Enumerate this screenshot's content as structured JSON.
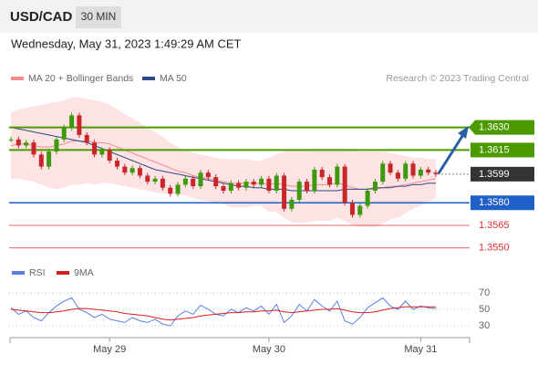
{
  "chart_data": {
    "type": "candlestick",
    "title": "USD/CAD",
    "timeframe": "30 MIN",
    "subtitle": "Wednesday, May 31, 2023 1:49:29 AM CET",
    "credit": "Research © 2023 Trading Central",
    "ylim": [
      1.3542,
      1.3654
    ],
    "up_color": "#3d9a0e",
    "down_color": "#c8262a",
    "categories": [
      null,
      null,
      null,
      null,
      null,
      null,
      null,
      null,
      null,
      null,
      null,
      null,
      null,
      "May 29",
      null,
      null,
      null,
      null,
      null,
      null,
      null,
      null,
      null,
      null,
      null,
      null,
      null,
      null,
      null,
      null,
      null,
      null,
      null,
      null,
      "May 30",
      null,
      null,
      null,
      null,
      null,
      null,
      null,
      null,
      null,
      null,
      null,
      null,
      null,
      null,
      null,
      null,
      null,
      null,
      null,
      "May 31",
      null,
      null
    ],
    "close": [
      1.3622,
      1.3618,
      1.362,
      1.3612,
      1.3604,
      1.3614,
      1.3622,
      1.363,
      1.3638,
      1.3625,
      1.362,
      1.3612,
      1.3615,
      1.3608,
      1.3604,
      1.36,
      1.3603,
      1.3598,
      1.3594,
      1.3596,
      1.359,
      1.3586,
      1.3592,
      1.3596,
      1.3591,
      1.36,
      1.3597,
      1.3591,
      1.3588,
      1.3593,
      1.359,
      1.3594,
      1.3592,
      1.3596,
      1.3588,
      1.3598,
      1.3576,
      1.3582,
      1.3594,
      1.3588,
      1.3602,
      1.3597,
      1.3592,
      1.3604,
      1.358,
      1.3572,
      1.3578,
      1.3588,
      1.3594,
      1.3606,
      1.36,
      1.3596,
      1.3606,
      1.3598,
      1.3602,
      1.36,
      1.3599
    ],
    "overlays": [
      {
        "name": "MA 20 + Bollinger Bands",
        "color": "#f08c8c",
        "band_color": "#fde3e3",
        "values": [
          1.3618,
          1.3619,
          1.3619,
          1.3618,
          1.3617,
          1.3617,
          1.3618,
          1.3619,
          1.3621,
          1.3621,
          1.3621,
          1.362,
          1.362,
          1.3619,
          1.3617,
          1.3615,
          1.3613,
          1.3611,
          1.3609,
          1.3607,
          1.3605,
          1.3603,
          1.3601,
          1.36,
          1.3598,
          1.3597,
          1.3596,
          1.3595,
          1.3594,
          1.3593,
          1.3593,
          1.3593,
          1.3593,
          1.3593,
          1.3592,
          1.3593,
          1.3592,
          1.3591,
          1.3591,
          1.3591,
          1.3592,
          1.3592,
          1.3592,
          1.3593,
          1.3592,
          1.359,
          1.3589,
          1.3589,
          1.3589,
          1.359,
          1.3591,
          1.3591,
          1.3592,
          1.3593,
          1.3594,
          1.3595,
          1.3596
        ],
        "upper": [
          1.364,
          1.3642,
          1.3643,
          1.3644,
          1.3645,
          1.3646,
          1.3647,
          1.3648,
          1.365,
          1.365,
          1.3649,
          1.3648,
          1.3647,
          1.3645,
          1.3642,
          1.3639,
          1.3636,
          1.3633,
          1.363,
          1.3627,
          1.3624,
          1.362,
          1.3617,
          1.3615,
          1.3613,
          1.3612,
          1.3611,
          1.361,
          1.3609,
          1.3609,
          1.3609,
          1.3609,
          1.3608,
          1.3608,
          1.361,
          1.3612,
          1.3614,
          1.3615,
          1.3615,
          1.3615,
          1.3616,
          1.3616,
          1.3616,
          1.3616,
          1.3616,
          1.3615,
          1.3614,
          1.3614,
          1.3614,
          1.3614,
          1.3613,
          1.3612,
          1.3611,
          1.361,
          1.361,
          1.3609,
          1.3609
        ],
        "lower": [
          1.3596,
          1.3596,
          1.3595,
          1.3594,
          1.3592,
          1.359,
          1.3589,
          1.359,
          1.3592,
          1.3592,
          1.3593,
          1.3592,
          1.3593,
          1.3593,
          1.3592,
          1.3591,
          1.359,
          1.3589,
          1.3588,
          1.3587,
          1.3586,
          1.3586,
          1.3585,
          1.3585,
          1.3583,
          1.3582,
          1.3581,
          1.358,
          1.3579,
          1.3577,
          1.3577,
          1.3577,
          1.3578,
          1.3578,
          1.3574,
          1.3574,
          1.357,
          1.3567,
          1.3567,
          1.3567,
          1.3568,
          1.3568,
          1.3568,
          1.357,
          1.3568,
          1.3565,
          1.3564,
          1.3564,
          1.3564,
          1.3566,
          1.3569,
          1.357,
          1.3573,
          1.3576,
          1.3578,
          1.3581,
          1.3583
        ]
      },
      {
        "name": "MA 50",
        "color": "#2c4a8a",
        "values": [
          1.363,
          1.3629,
          1.3628,
          1.3627,
          1.3626,
          1.3625,
          1.3624,
          1.3623,
          1.3622,
          1.3621,
          1.362,
          1.3618,
          1.3616,
          1.3614,
          1.3612,
          1.361,
          1.3608,
          1.3606,
          1.3604,
          1.3602,
          1.3601,
          1.36,
          1.3599,
          1.3598,
          1.3597,
          1.3596,
          1.3595,
          1.3594,
          1.3593,
          1.3592,
          1.3591,
          1.3591,
          1.359,
          1.359,
          1.3589,
          1.3589,
          1.3589,
          1.3588,
          1.3588,
          1.3588,
          1.3588,
          1.3588,
          1.3588,
          1.3588,
          1.3589,
          1.3589,
          1.3589,
          1.3589,
          1.359,
          1.359,
          1.359,
          1.3591,
          1.3591,
          1.3592,
          1.3592,
          1.3593,
          1.3593
        ]
      }
    ],
    "levels": [
      {
        "value": 1.363,
        "label": "1.3630",
        "color": "#4c9a00",
        "style": "solid",
        "width": 2,
        "labelstyle": "arrow-box"
      },
      {
        "value": 1.3615,
        "label": "1.3615",
        "color": "#4c9a00",
        "style": "solid",
        "width": 2,
        "labelstyle": "box"
      },
      {
        "value": 1.3599,
        "label": "1.3599",
        "color": "#333333",
        "style": "dotted",
        "width": 1,
        "labelstyle": "box"
      },
      {
        "value": 1.358,
        "label": "1.3580",
        "color": "#1f5fc8",
        "style": "solid",
        "width": 1.5,
        "labelstyle": "box"
      },
      {
        "value": 1.3565,
        "label": "1.3565",
        "color": "#e03030",
        "style": "solid",
        "width": 0.8,
        "labelstyle": "text"
      },
      {
        "value": 1.355,
        "label": "1.3550",
        "color": "#e03030",
        "style": "solid",
        "width": 0.8,
        "labelstyle": "text"
      }
    ],
    "rsi": {
      "ylim": [
        20,
        80
      ],
      "yticks": [
        70,
        50,
        30
      ],
      "series": [
        {
          "name": "RSI",
          "color": "#5b7fe0",
          "values": [
            52,
            44,
            48,
            40,
            36,
            46,
            54,
            60,
            64,
            50,
            46,
            40,
            44,
            38,
            36,
            34,
            40,
            36,
            34,
            38,
            32,
            30,
            42,
            48,
            44,
            55,
            50,
            44,
            42,
            50,
            46,
            52,
            48,
            54,
            44,
            56,
            34,
            42,
            56,
            48,
            62,
            54,
            48,
            60,
            36,
            32,
            40,
            52,
            58,
            64,
            54,
            50,
            60,
            50,
            54,
            52,
            51
          ]
        },
        {
          "name": "9MA",
          "color": "#d42020",
          "values": [
            50,
            49,
            48,
            47,
            46,
            46,
            47,
            48,
            50,
            51,
            51,
            50,
            49,
            48,
            47,
            45,
            44,
            43,
            42,
            40,
            38,
            37,
            38,
            39,
            40,
            42,
            43,
            44,
            45,
            46,
            46,
            47,
            47,
            48,
            48,
            49,
            47,
            46,
            47,
            48,
            49,
            50,
            50,
            51,
            49,
            47,
            46,
            46,
            47,
            49,
            51,
            52,
            53,
            53,
            53,
            53,
            53
          ]
        }
      ]
    }
  }
}
